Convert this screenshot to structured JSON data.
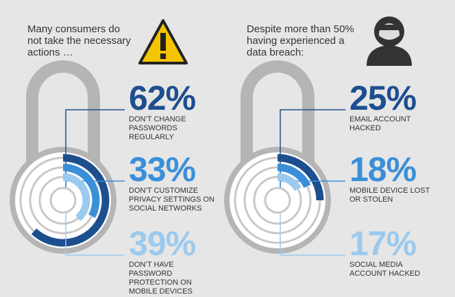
{
  "chart_data": [
    {
      "type": "radial_bar",
      "title": "Many consumers do not take the necessary actions …",
      "categories": [
        "DON’T CHANGE PASSWORDS REGULARLY",
        "DON’T CUSTOMIZE PRIVACY SETTINGS ON SOCIAL NETWORKS",
        "DON’T HAVE PASSWORD PROTECTION ON MOBILE DEVICES"
      ],
      "values": [
        62,
        33,
        39
      ],
      "value_labels": [
        "62%",
        "33%",
        "39%"
      ],
      "colors": [
        "#1d4f8f",
        "#3b8fd8",
        "#9ccaee"
      ],
      "ylim": [
        0,
        100
      ]
    },
    {
      "type": "radial_bar",
      "title": "Despite more than 50% having experienced a data breach:",
      "categories": [
        "EMAIL ACCOUNT HACKED",
        "MOBILE DEVICE LOST OR STOLEN",
        "SOCIAL MEDIA ACCOUNT HACKED"
      ],
      "values": [
        25,
        18,
        17
      ],
      "value_labels": [
        "25%",
        "18%",
        "17%"
      ],
      "colors": [
        "#1d4f8f",
        "#3b8fd8",
        "#9ccaee"
      ],
      "ylim": [
        0,
        100
      ]
    }
  ]
}
